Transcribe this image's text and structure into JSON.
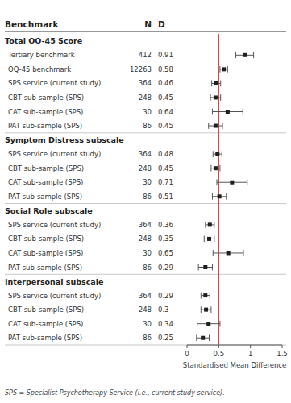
{
  "chart_data": {
    "type": "forest",
    "xlabel": "Standardised Mean Difference",
    "footnote": "SPS = Specialist Psychotherapy Service (i.e., current study service).",
    "columns": [
      "Benchmark",
      "N",
      "D"
    ],
    "xlim": [
      0,
      1.5
    ],
    "xticks": [
      0,
      0.5,
      1,
      1.5
    ],
    "reference_line": {
      "x": 0.5,
      "color": "#cc2222"
    },
    "sections": [
      {
        "label": "Total OQ-45 Score",
        "rows": [
          {
            "name": "Tertiary benchmark",
            "n": "412",
            "d": "0.91",
            "value": 0.91,
            "ci_lo": 0.77,
            "ci_hi": 1.05
          },
          {
            "name": "OQ-45 benchmark",
            "n": "12263",
            "d": "0.58",
            "value": 0.58,
            "ci_lo": 0.52,
            "ci_hi": 0.64
          },
          {
            "name": "SPS service (current study)",
            "n": "364",
            "d": "0.46",
            "value": 0.46,
            "ci_lo": 0.39,
            "ci_hi": 0.53
          },
          {
            "name": "CBT sub-sample (SPS)",
            "n": "248",
            "d": "0.45",
            "value": 0.45,
            "ci_lo": 0.37,
            "ci_hi": 0.53
          },
          {
            "name": "CAT sub-sample  (SPS)",
            "n": "30",
            "d": "0.64",
            "value": 0.64,
            "ci_lo": 0.4,
            "ci_hi": 0.88
          },
          {
            "name": "PAT sub-sample  (SPS)",
            "n": "86",
            "d": "0.45",
            "value": 0.45,
            "ci_lo": 0.34,
            "ci_hi": 0.56
          }
        ]
      },
      {
        "label": "Symptom Distress subscale",
        "rows": [
          {
            "name": "SPS service (current study)",
            "n": "364",
            "d": "0.48",
            "value": 0.48,
            "ci_lo": 0.41,
            "ci_hi": 0.55
          },
          {
            "name": "CBT sub-sample (SPS)",
            "n": "248",
            "d": "0.45",
            "value": 0.45,
            "ci_lo": 0.38,
            "ci_hi": 0.52
          },
          {
            "name": "CAT sub-sample  (SPS)",
            "n": "30",
            "d": "0.71",
            "value": 0.71,
            "ci_lo": 0.47,
            "ci_hi": 0.95
          },
          {
            "name": "PAT sub-sample  (SPS)",
            "n": "86",
            "d": "0.51",
            "value": 0.51,
            "ci_lo": 0.4,
            "ci_hi": 0.62
          }
        ]
      },
      {
        "label": "Social Role subscale",
        "rows": [
          {
            "name": "SPS service (current study)",
            "n": "364",
            "d": "0.36",
            "value": 0.36,
            "ci_lo": 0.29,
            "ci_hi": 0.43
          },
          {
            "name": "CBT sub-sample (SPS)",
            "n": "248",
            "d": "0.35",
            "value": 0.35,
            "ci_lo": 0.27,
            "ci_hi": 0.43
          },
          {
            "name": "CAT sub-sample  (SPS)",
            "n": "30",
            "d": "0.65",
            "value": 0.65,
            "ci_lo": 0.41,
            "ci_hi": 0.89
          },
          {
            "name": "PAT sub-sample  (SPS)",
            "n": "86",
            "d": "0.29",
            "value": 0.29,
            "ci_lo": 0.18,
            "ci_hi": 0.4
          }
        ]
      },
      {
        "label": "Interpersonal subscale",
        "rows": [
          {
            "name": "SPS service (current study)",
            "n": "364",
            "d": "0.29",
            "value": 0.29,
            "ci_lo": 0.22,
            "ci_hi": 0.36
          },
          {
            "name": "CBT sub-sample (SPS)",
            "n": "248",
            "d": "0.3",
            "value": 0.3,
            "ci_lo": 0.22,
            "ci_hi": 0.38
          },
          {
            "name": "CAT sub-sample  (SPS)",
            "n": "30",
            "d": "0.34",
            "value": 0.34,
            "ci_lo": 0.16,
            "ci_hi": 0.52
          },
          {
            "name": "PAT sub-sample  (SPS)",
            "n": "86",
            "d": "0.25",
            "value": 0.25,
            "ci_lo": 0.15,
            "ci_hi": 0.35
          }
        ]
      }
    ]
  }
}
